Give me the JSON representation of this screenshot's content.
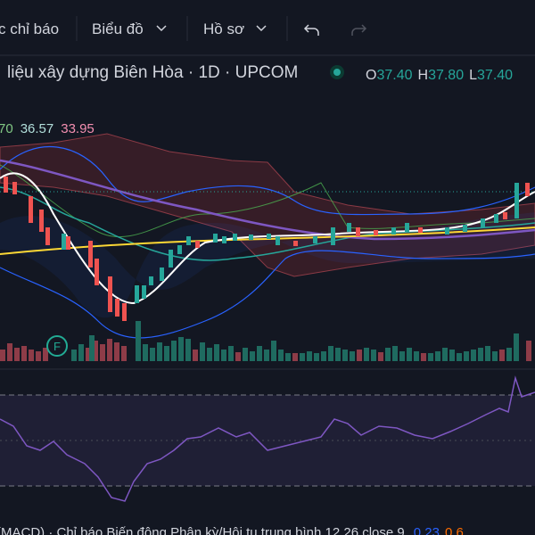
{
  "toolbar": {
    "indicators": "c chỉ báo",
    "chart": "Biểu đồ",
    "profile": "Hồ sơ"
  },
  "legend": {
    "title": "liệu xây dựng Biên Hòa · 1D · UPCOM",
    "o_label": "O",
    "o_value": "37.40",
    "h_label": "H",
    "h_value": "37.80",
    "l_label": "L",
    "l_value": "37.40"
  },
  "indicator_values": [
    "70",
    "36.57",
    "33.95"
  ],
  "event_badge": "F",
  "bottom_pane": {
    "title": "(MACD) · Chỉ báo Biến động Phân kỳ/Hội tụ trung bình 12 26 close 9",
    "value1": "0.23",
    "value2": "0.6"
  }
}
